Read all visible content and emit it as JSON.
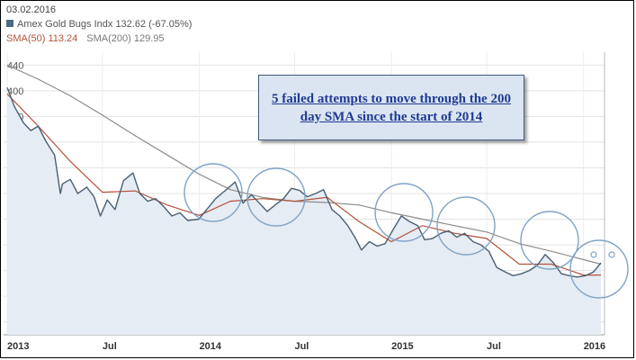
{
  "header": {
    "date": "03.02.2016",
    "series_label": "Amex Gold Bugs Indx 132.62 (-67.05%)",
    "sma50_label": "SMA(50) 113.24",
    "sma200_label": "SMA(200) 129.95"
  },
  "annotation": {
    "text": "5 failed attempts to move through the 200 day SMA since the start of 2014"
  },
  "colors": {
    "price": "#4a5f73",
    "price_fill": "#e5ecf3",
    "sma50": "#b5523b",
    "sma200": "#8c8c8c",
    "circle": "#7fa3c8",
    "series_swatch": "#4a6a88"
  },
  "chart_data": {
    "type": "area",
    "series": [
      {
        "name": "Amex Gold Bugs Indx",
        "x": [
          "2013-01-01",
          "2013-01-15",
          "2013-02-01",
          "2013-02-15",
          "2013-03-01",
          "2013-03-15",
          "2013-04-01",
          "2013-04-12",
          "2013-04-16",
          "2013-05-01",
          "2013-05-15",
          "2013-06-01",
          "2013-06-15",
          "2013-06-27",
          "2013-07-10",
          "2013-07-25",
          "2013-08-10",
          "2013-08-28",
          "2013-09-10",
          "2013-09-25",
          "2013-10-10",
          "2013-10-25",
          "2013-11-10",
          "2013-11-25",
          "2013-12-10",
          "2013-12-31",
          "2014-01-15",
          "2014-02-01",
          "2014-02-20",
          "2014-03-10",
          "2014-03-25",
          "2014-04-10",
          "2014-04-25",
          "2014-05-10",
          "2014-05-25",
          "2014-06-10",
          "2014-06-25",
          "2014-07-10",
          "2014-07-25",
          "2014-08-10",
          "2014-08-25",
          "2014-09-10",
          "2014-09-25",
          "2014-10-10",
          "2014-10-25",
          "2014-11-05",
          "2014-11-20",
          "2014-12-05",
          "2014-12-20",
          "2015-01-05",
          "2015-01-20",
          "2015-02-05",
          "2015-02-20",
          "2015-03-05",
          "2015-03-20",
          "2015-04-05",
          "2015-04-20",
          "2015-05-05",
          "2015-05-20",
          "2015-06-05",
          "2015-06-20",
          "2015-07-05",
          "2015-07-20",
          "2015-08-05",
          "2015-08-20",
          "2015-09-05",
          "2015-09-20",
          "2015-10-05",
          "2015-10-20",
          "2015-11-05",
          "2015-11-20",
          "2015-12-05",
          "2015-12-20",
          "2016-01-05",
          "2016-01-20",
          "2016-02-03"
        ],
        "values": [
          405,
          375,
          350,
          338,
          345,
          322,
          300,
          240,
          255,
          262,
          240,
          250,
          235,
          205,
          230,
          215,
          260,
          272,
          240,
          228,
          232,
          220,
          205,
          210,
          198,
          200,
          215,
          232,
          245,
          258,
          225,
          238,
          225,
          212,
          222,
          232,
          248,
          245,
          235,
          240,
          246,
          215,
          205,
          190,
          170,
          152,
          165,
          158,
          162,
          185,
          205,
          196,
          190,
          168,
          170,
          178,
          182,
          172,
          178,
          165,
          160,
          150,
          125,
          118,
          112,
          115,
          120,
          128,
          145,
          132,
          115,
          112,
          110,
          112,
          118,
          132
        ]
      }
    ],
    "sma50": {
      "x": [
        "2013-01-01",
        "2013-03-01",
        "2013-05-01",
        "2013-07-01",
        "2013-09-01",
        "2013-11-01",
        "2014-01-01",
        "2014-03-01",
        "2014-05-01",
        "2014-07-01",
        "2014-09-01",
        "2014-11-01",
        "2015-01-01",
        "2015-03-01",
        "2015-05-01",
        "2015-07-01",
        "2015-09-01",
        "2015-11-01",
        "2016-01-01",
        "2016-02-03"
      ],
      "values": [
        395,
        345,
        290,
        242,
        244,
        222,
        206,
        228,
        232,
        228,
        234,
        196,
        165,
        190,
        178,
        170,
        130,
        130,
        113,
        113
      ]
    },
    "sma200": {
      "x": [
        "2013-01-01",
        "2013-03-01",
        "2013-05-01",
        "2013-07-01",
        "2013-09-01",
        "2013-11-01",
        "2014-01-01",
        "2014-03-01",
        "2014-05-01",
        "2014-07-01",
        "2014-09-01",
        "2014-11-01",
        "2015-01-01",
        "2015-03-01",
        "2015-05-01",
        "2015-07-01",
        "2015-09-01",
        "2015-11-01",
        "2016-01-01",
        "2016-02-03"
      ],
      "values": [
        440,
        418,
        392,
        362,
        330,
        300,
        270,
        246,
        234,
        228,
        226,
        222,
        210,
        200,
        190,
        180,
        162,
        150,
        137,
        130
      ]
    },
    "ylim": [
      20,
      460
    ],
    "yticks": [
      40,
      80,
      120,
      160,
      200,
      240,
      280,
      320,
      360,
      400,
      440
    ],
    "xticks": [
      {
        "label": "2013",
        "date": "2013-01-01"
      },
      {
        "label": "Jul",
        "date": "2013-07-01"
      },
      {
        "label": "2014",
        "date": "2014-01-01"
      },
      {
        "label": "Jul",
        "date": "2014-07-01"
      },
      {
        "label": "2015",
        "date": "2015-01-01"
      },
      {
        "label": "Jul",
        "date": "2015-07-01"
      },
      {
        "label": "2016",
        "date": "2016-01-01"
      }
    ],
    "grid": true,
    "highlight_circles": [
      "2014-03-01",
      "2014-06-25",
      "2015-01-10",
      "2015-05-15",
      "2015-10-15",
      "2016-01-20"
    ]
  }
}
